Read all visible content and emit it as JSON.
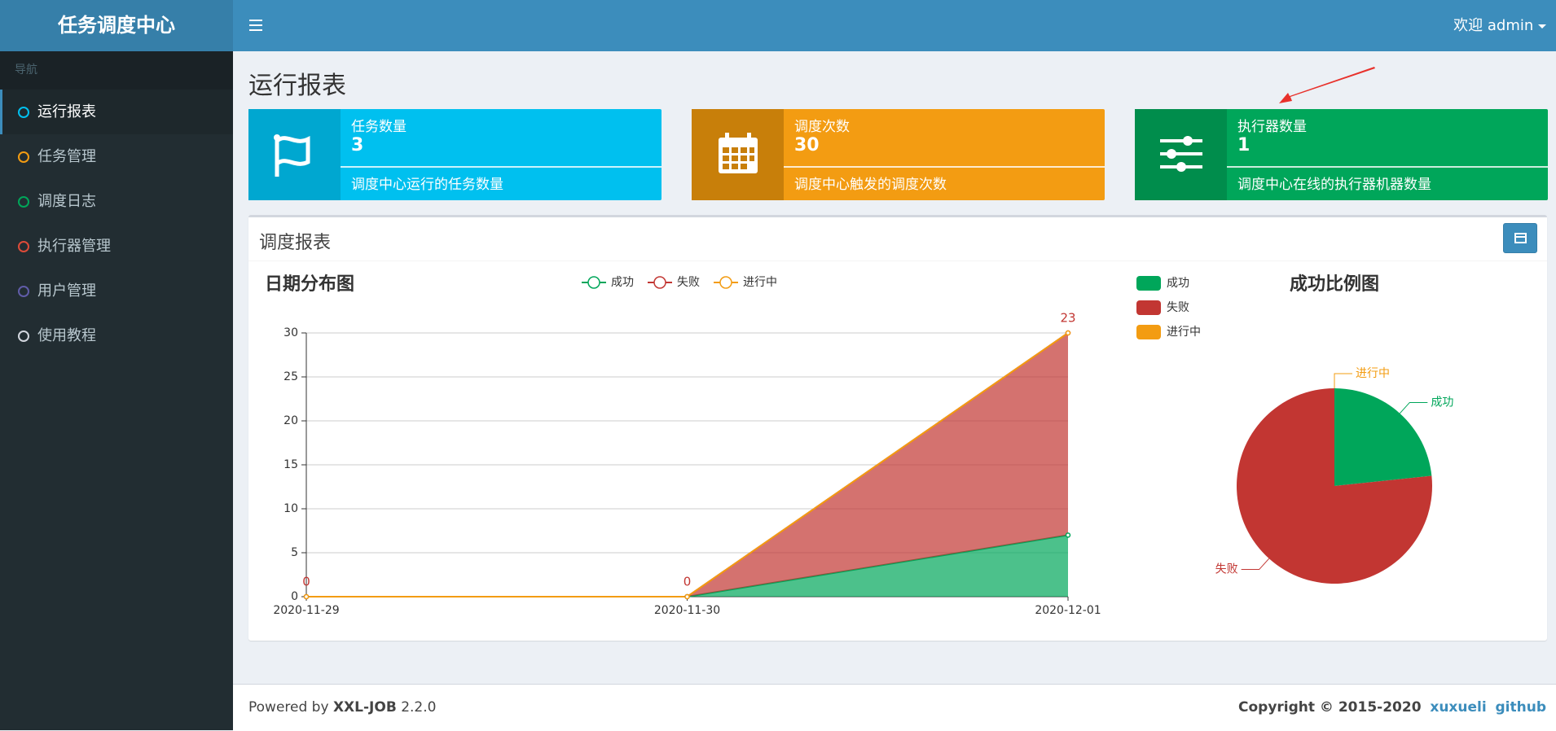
{
  "sidebar": {
    "logo": "任务调度中心",
    "nav_header": "导航",
    "menu": [
      {
        "label": "运行报表",
        "color": "#00c0ef",
        "active": true
      },
      {
        "label": "任务管理",
        "color": "#f39c12"
      },
      {
        "label": "调度日志",
        "color": "#00a65a"
      },
      {
        "label": "执行器管理",
        "color": "#dd4b39"
      },
      {
        "label": "用户管理",
        "color": "#605ca8"
      },
      {
        "label": "使用教程",
        "color": "#d2d6de"
      }
    ]
  },
  "header": {
    "user": "欢迎 admin"
  },
  "page_title": "运行报表",
  "stats": [
    {
      "title": "任务数量",
      "value": 3,
      "description": "调度中心运行的任务数量",
      "color": "#00c0ef",
      "icon_color": "#00a7d0"
    },
    {
      "title": "调度次数",
      "value": 30,
      "description": "调度中心触发的调度次数",
      "color": "#f39c12",
      "icon_color": "#c87f0a"
    },
    {
      "title": "执行器数量",
      "value": 1,
      "description": "调度中心在线的执行器机器数量",
      "color": "#00a65a",
      "icon_color": "#008d4c"
    }
  ],
  "panel": {
    "title": "调度报表"
  },
  "chart_data": [
    {
      "type": "area",
      "title": "日期分布图",
      "stacked": true,
      "grid": true,
      "categories": [
        "2020-11-29",
        "2020-11-30",
        "2020-12-01"
      ],
      "series": [
        {
          "name": "成功",
          "color": "#00a65a",
          "values": [
            0,
            0,
            7
          ]
        },
        {
          "name": "失败",
          "color": "#c23632",
          "values": [
            0,
            0,
            23
          ],
          "show_labels": true
        },
        {
          "name": "进行中",
          "color": "#f39c12",
          "values": [
            0,
            0,
            0
          ]
        }
      ],
      "ylim": [
        0,
        30
      ],
      "yticks": [
        0,
        5,
        10,
        15,
        20,
        25,
        30
      ]
    },
    {
      "type": "pie",
      "title": "成功比例图",
      "categories": [
        "成功",
        "失败",
        "进行中"
      ],
      "values": [
        7,
        23,
        0
      ],
      "colors": [
        "#00a65a",
        "#c23632",
        "#f39c12"
      ]
    }
  ],
  "footer": {
    "powered": "Powered by",
    "product": "XXL-JOB",
    "version": "2.2.0",
    "copyright": "Copyright © 2015-2020",
    "author": "xuxueli",
    "link": "github"
  }
}
